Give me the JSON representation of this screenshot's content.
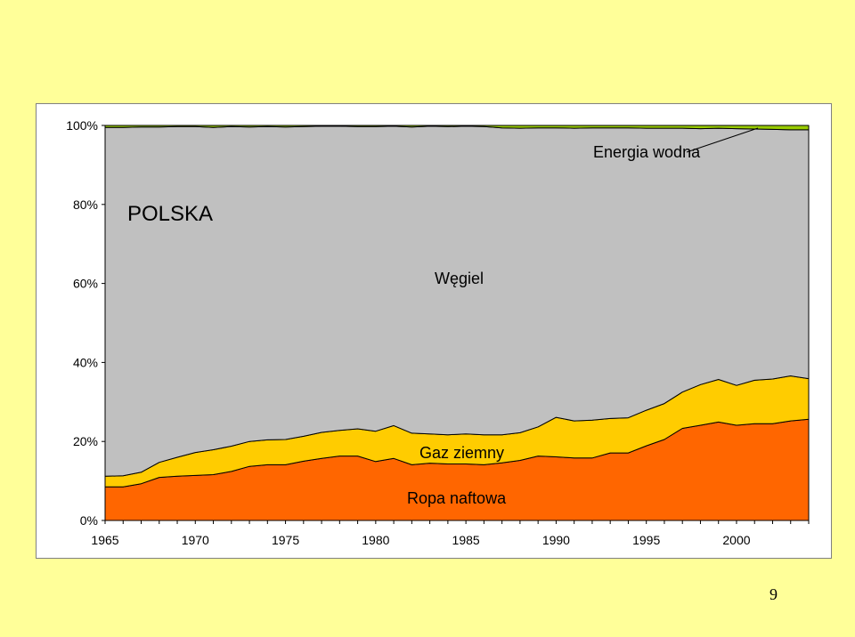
{
  "page": {
    "number": "9",
    "background": "#ffff99"
  },
  "chart_data": {
    "type": "area",
    "stacked": "percent",
    "title": "POLSKA",
    "xlabel": "",
    "ylabel": "",
    "ylim": [
      0,
      100
    ],
    "y_ticks": [
      "0%",
      "20%",
      "40%",
      "60%",
      "80%",
      "100%"
    ],
    "x_ticks": [
      "1965",
      "1970",
      "1975",
      "1980",
      "1985",
      "1990",
      "1995",
      "2000"
    ],
    "x": [
      1965,
      1966,
      1967,
      1968,
      1969,
      1970,
      1971,
      1972,
      1973,
      1974,
      1975,
      1976,
      1977,
      1978,
      1979,
      1980,
      1981,
      1982,
      1983,
      1984,
      1985,
      1986,
      1987,
      1988,
      1989,
      1990,
      1991,
      1992,
      1993,
      1994,
      1995,
      1996,
      1997,
      1998,
      1999,
      2000,
      2001,
      2002,
      2003,
      2004
    ],
    "series": [
      {
        "name": "Ropa naftowa",
        "color": "#ff6600",
        "values": [
          8.5,
          8.5,
          9.3,
          10.9,
          11.2,
          11.4,
          11.6,
          12.4,
          13.7,
          14.1,
          14.1,
          15.0,
          15.7,
          16.3,
          16.3,
          14.9,
          15.7,
          14.1,
          14.5,
          14.3,
          14.3,
          14.1,
          14.6,
          15.2,
          16.3,
          16.1,
          15.8,
          15.8,
          17.1,
          17.1,
          18.9,
          20.5,
          23.3,
          24.1,
          24.9,
          24.1,
          24.5,
          24.5,
          25.2,
          25.6
        ]
      },
      {
        "name": "Gaz ziemny",
        "color": "#ffcc00",
        "values": [
          2.7,
          2.8,
          2.9,
          3.8,
          4.8,
          5.8,
          6.3,
          6.4,
          6.3,
          6.3,
          6.4,
          6.3,
          6.6,
          6.5,
          6.9,
          7.7,
          8.3,
          8.0,
          7.4,
          7.4,
          7.6,
          7.6,
          7.1,
          7.0,
          7.4,
          10.0,
          9.4,
          9.6,
          8.7,
          8.9,
          9.0,
          9.1,
          9.2,
          10.3,
          10.8,
          10.1,
          11.0,
          11.3,
          11.4,
          10.3
        ]
      },
      {
        "name": "Węgiel",
        "color": "#c0c0c0",
        "values": [
          88.3,
          88.2,
          87.4,
          84.9,
          83.7,
          82.5,
          81.6,
          80.9,
          79.6,
          79.3,
          79.1,
          78.4,
          77.5,
          77.0,
          76.5,
          77.1,
          75.8,
          77.5,
          77.9,
          78.0,
          77.9,
          78.0,
          77.7,
          77.1,
          75.7,
          73.3,
          74.1,
          74.0,
          73.6,
          73.4,
          71.4,
          69.7,
          66.8,
          64.8,
          63.6,
          65.0,
          63.6,
          63.2,
          62.3,
          63.0
        ]
      },
      {
        "name": "Energia wodna",
        "color": "#99cc00",
        "values": [
          0.5,
          0.5,
          0.4,
          0.4,
          0.3,
          0.3,
          0.5,
          0.3,
          0.4,
          0.3,
          0.4,
          0.3,
          0.2,
          0.2,
          0.3,
          0.3,
          0.2,
          0.4,
          0.2,
          0.3,
          0.2,
          0.3,
          0.6,
          0.7,
          0.6,
          0.6,
          0.7,
          0.6,
          0.6,
          0.6,
          0.7,
          0.7,
          0.7,
          0.8,
          0.7,
          0.8,
          0.9,
          1.0,
          1.1,
          1.1
        ]
      }
    ],
    "annotations": {
      "coal": "Węgiel",
      "gas": "Gaz ziemny",
      "oil": "Ropa naftowa",
      "hydro": "Energia wodna"
    },
    "grid": false,
    "legend": "none"
  }
}
